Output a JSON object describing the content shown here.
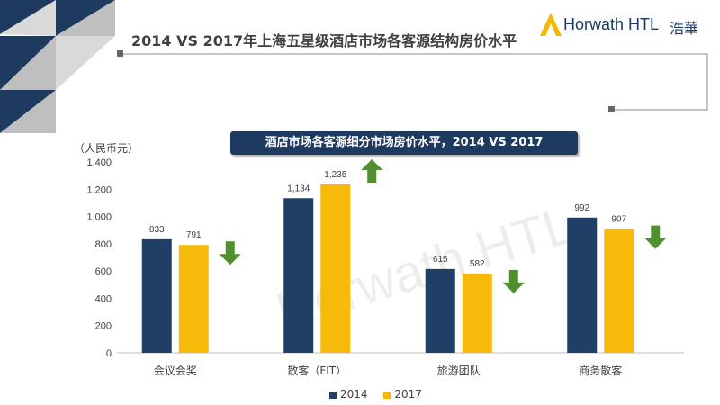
{
  "page": {
    "title": "2014 VS 2017年上海五星级酒店市场各客源结构房价水平",
    "banner": "酒店市场各客源细分市场房价水平，2014 VS 2017",
    "unit_label": "（人民币元）"
  },
  "logo": {
    "brand": "Horwath HTL",
    "chinese": "浩華",
    "color": "#1d3b66",
    "accent": "#f5b800"
  },
  "watermark": "Horwath HTL",
  "colors": {
    "series_2014": "#1f3f66",
    "series_2017": "#f7b90a",
    "arrow": "#4f8f2e",
    "banner": "#1f3a5f"
  },
  "chart_data": {
    "type": "bar",
    "categories": [
      "会议会奖",
      "散客（FIT）",
      "旅游团队",
      "商务散客"
    ],
    "series": [
      {
        "name": "2014",
        "values": [
          833,
          1134,
          615,
          992
        ]
      },
      {
        "name": "2017",
        "values": [
          791,
          1235,
          582,
          907
        ]
      }
    ],
    "data_labels": {
      "2014": [
        "833",
        "1,134",
        "615",
        "992"
      ],
      "2017": [
        "791",
        "1,235",
        "582",
        "907"
      ]
    },
    "trend": [
      "down",
      "up",
      "down",
      "down"
    ],
    "ylim": [
      0,
      1400
    ],
    "yticks": [
      0,
      200,
      400,
      600,
      800,
      1000,
      1200,
      1400
    ],
    "ytick_labels": [
      "0",
      "200",
      "400",
      "600",
      "800",
      "1,000",
      "1,200",
      "1,400"
    ],
    "legend_position": "bottom",
    "grid": false
  }
}
